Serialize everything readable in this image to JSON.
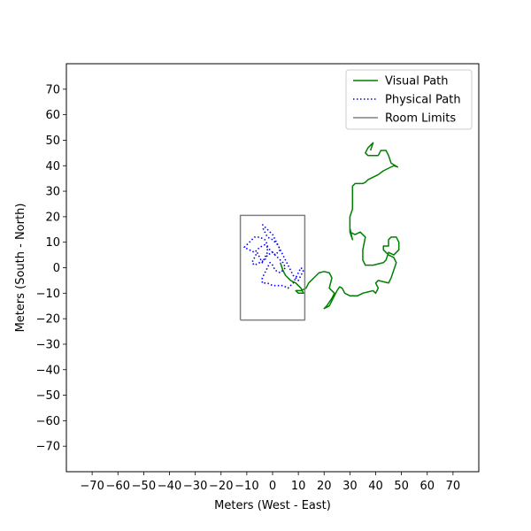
{
  "chart_data": {
    "type": "line",
    "xlabel": "Meters (West - East)",
    "ylabel": "Meters (South - North)",
    "xlim": [
      -80,
      80
    ],
    "ylim": [
      -80,
      80
    ],
    "xticks": [
      -70,
      -60,
      -50,
      -40,
      -30,
      -20,
      -10,
      0,
      10,
      20,
      30,
      40,
      50,
      60,
      70
    ],
    "yticks": [
      -70,
      -60,
      -50,
      -40,
      -30,
      -20,
      -10,
      0,
      10,
      20,
      30,
      40,
      50,
      60,
      70
    ],
    "xtick_labels": [
      "−70",
      "−60",
      "−50",
      "−40",
      "−30",
      "−20",
      "−10",
      "0",
      "10",
      "20",
      "30",
      "40",
      "50",
      "60",
      "70"
    ],
    "ytick_labels": [
      "−70",
      "−60",
      "−50",
      "−40",
      "−30",
      "−20",
      "−10",
      "0",
      "10",
      "20",
      "30",
      "40",
      "50",
      "60",
      "70"
    ],
    "grid": false,
    "legend_position": "top-right",
    "series": [
      {
        "name": "Visual Path",
        "color": "#008000",
        "style": "solid",
        "points": [
          [
            3,
            2
          ],
          [
            4,
            -1
          ],
          [
            5,
            -3
          ],
          [
            7,
            -5
          ],
          [
            9,
            -6
          ],
          [
            11,
            -8
          ],
          [
            12,
            -10
          ],
          [
            10,
            -10
          ],
          [
            9,
            -9
          ],
          [
            11,
            -9
          ],
          [
            13,
            -8
          ],
          [
            14,
            -6
          ],
          [
            16,
            -4
          ],
          [
            18,
            -2
          ],
          [
            20,
            -1.5
          ],
          [
            22,
            -2
          ],
          [
            23,
            -4
          ],
          [
            22,
            -8
          ],
          [
            24,
            -10
          ],
          [
            23,
            -12
          ],
          [
            21,
            -15
          ],
          [
            20,
            -16
          ],
          [
            22,
            -15
          ],
          [
            23,
            -13
          ],
          [
            24,
            -11
          ],
          [
            25,
            -9
          ],
          [
            26,
            -7.5
          ],
          [
            27,
            -8
          ],
          [
            28,
            -10
          ],
          [
            30,
            -11
          ],
          [
            33,
            -11
          ],
          [
            35,
            -10
          ],
          [
            37,
            -9.5
          ],
          [
            39,
            -9
          ],
          [
            40,
            -10
          ],
          [
            41,
            -8
          ],
          [
            40,
            -6
          ],
          [
            41,
            -5
          ],
          [
            43,
            -5.5
          ],
          [
            45,
            -6
          ],
          [
            46,
            -4
          ],
          [
            47,
            -1
          ],
          [
            48,
            2
          ],
          [
            47,
            4
          ],
          [
            45,
            5
          ],
          [
            44,
            6
          ],
          [
            43,
            7
          ],
          [
            43,
            8.5
          ],
          [
            45,
            8.5
          ],
          [
            45,
            11
          ],
          [
            46,
            12
          ],
          [
            48,
            12
          ],
          [
            49,
            10
          ],
          [
            49,
            7
          ],
          [
            47,
            5
          ],
          [
            45,
            6
          ],
          [
            44,
            3
          ],
          [
            43,
            2
          ],
          [
            39,
            1
          ],
          [
            36,
            1
          ],
          [
            35,
            3
          ],
          [
            35,
            7
          ],
          [
            36,
            12
          ],
          [
            34,
            14
          ],
          [
            32,
            13
          ],
          [
            30,
            14
          ],
          [
            30,
            15.5
          ],
          [
            31,
            11
          ],
          [
            30,
            14
          ],
          [
            30,
            17
          ],
          [
            30,
            20
          ],
          [
            31,
            23
          ],
          [
            31,
            28
          ],
          [
            31,
            32
          ],
          [
            32,
            33
          ],
          [
            35,
            33
          ],
          [
            36,
            33.5
          ],
          [
            37,
            34.5
          ],
          [
            39,
            35.5
          ],
          [
            41,
            36.5
          ],
          [
            43,
            38
          ],
          [
            45,
            39
          ],
          [
            47,
            40
          ],
          [
            48.5,
            39.5
          ],
          [
            46,
            41
          ],
          [
            45,
            44
          ],
          [
            44,
            46
          ],
          [
            42,
            46
          ],
          [
            41,
            44
          ],
          [
            39,
            44
          ],
          [
            37,
            44
          ],
          [
            36,
            45
          ],
          [
            37,
            47
          ],
          [
            39,
            49
          ],
          [
            38,
            46
          ]
        ]
      },
      {
        "name": "Physical Path",
        "color": "#0000ff",
        "style": "dotted",
        "points": [
          [
            -4,
            17
          ],
          [
            -2,
            15
          ],
          [
            0,
            13
          ],
          [
            1,
            11
          ],
          [
            2,
            9
          ],
          [
            3,
            7
          ],
          [
            1,
            5
          ],
          [
            -1,
            7
          ],
          [
            -3,
            9
          ],
          [
            -5,
            8
          ],
          [
            -7,
            6
          ],
          [
            -9,
            7
          ],
          [
            -11,
            8
          ],
          [
            -9,
            10
          ],
          [
            -7,
            12
          ],
          [
            -5,
            12
          ],
          [
            -3,
            11
          ],
          [
            -2,
            9
          ],
          [
            -2,
            6
          ],
          [
            -3,
            4
          ],
          [
            -4,
            2
          ],
          [
            -5,
            4
          ],
          [
            -6,
            6
          ],
          [
            -7,
            4
          ],
          [
            -8,
            2
          ],
          [
            -7,
            1
          ],
          [
            -5,
            2
          ],
          [
            -3,
            3
          ],
          [
            -2,
            5
          ],
          [
            0,
            6
          ],
          [
            2,
            4
          ],
          [
            4,
            2
          ],
          [
            5,
            0
          ],
          [
            3,
            -2
          ],
          [
            1,
            -1
          ],
          [
            0,
            1
          ],
          [
            -1,
            2
          ],
          [
            -2,
            0
          ],
          [
            -3,
            -2
          ],
          [
            -4,
            -4
          ],
          [
            -4,
            -6
          ],
          [
            -2,
            -6
          ],
          [
            0,
            -7
          ],
          [
            2,
            -7
          ],
          [
            4,
            -7
          ],
          [
            6,
            -8
          ],
          [
            8,
            -6
          ],
          [
            9,
            -4
          ],
          [
            10,
            -2
          ],
          [
            11,
            0
          ],
          [
            12,
            -1
          ],
          [
            11,
            -3
          ],
          [
            10,
            -5
          ],
          [
            8,
            -3
          ],
          [
            7,
            -1
          ],
          [
            6,
            1
          ],
          [
            5,
            3
          ],
          [
            4,
            5
          ],
          [
            3,
            7
          ],
          [
            2,
            9
          ],
          [
            0,
            11
          ],
          [
            -2,
            12
          ],
          [
            -3,
            14
          ],
          [
            -4,
            16
          ]
        ]
      },
      {
        "name": "Room Limits",
        "color": "#808080",
        "style": "solid",
        "points": [
          [
            -12.5,
            -20.5
          ],
          [
            12.5,
            -20.5
          ],
          [
            12.5,
            20.5
          ],
          [
            -12.5,
            20.5
          ],
          [
            -12.5,
            -20.5
          ]
        ]
      }
    ]
  }
}
